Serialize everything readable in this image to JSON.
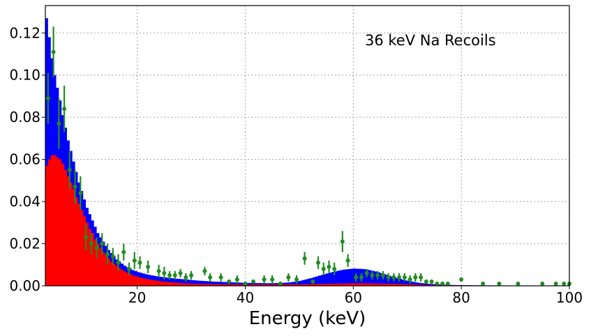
{
  "chart_data": {
    "type": "bar",
    "title": "",
    "xlabel": "Energy (keV)",
    "ylabel": "",
    "annotation": "36 keV Na Recoils",
    "xlim": [
      3,
      100
    ],
    "ylim": [
      0,
      0.133
    ],
    "grid": true,
    "x_ticks": [
      20,
      40,
      60,
      80,
      100
    ],
    "x_tick_labels": [
      "20",
      "40",
      "60",
      "80",
      "100"
    ],
    "y_ticks": [
      0,
      0.02,
      0.04,
      0.06,
      0.08,
      0.1,
      0.12
    ],
    "y_tick_labels": [
      "0.00",
      "0.02",
      "0.04",
      "0.06",
      "0.08",
      "0.10",
      "0.12"
    ],
    "bin_width": 0.5,
    "colors": {
      "total": "#0000ff",
      "recoil": "#ff0000",
      "data": "#228b22"
    },
    "series": [
      {
        "kind": "histogram",
        "color": "#0000ff",
        "x": [
          3,
          3.5,
          4,
          4.5,
          5,
          5.5,
          6,
          6.5,
          7,
          7.5,
          8,
          8.5,
          9,
          9.5,
          10,
          10.5,
          11,
          11.5,
          12,
          12.5,
          13,
          13.5,
          14,
          14.5,
          15,
          15.5,
          16,
          16.5,
          17,
          17.5,
          18,
          19,
          20,
          21,
          22,
          23,
          24,
          25,
          26,
          27,
          28,
          29,
          30,
          32,
          34,
          36,
          38,
          40,
          42,
          44,
          46,
          48,
          50,
          52,
          54,
          56,
          58,
          60,
          62,
          64,
          66,
          68,
          70,
          72,
          74,
          76,
          78,
          80,
          85,
          90,
          95,
          100
        ],
        "values": [
          0.127,
          0.118,
          0.108,
          0.1,
          0.094,
          0.088,
          0.081,
          0.075,
          0.069,
          0.064,
          0.059,
          0.054,
          0.049,
          0.045,
          0.041,
          0.037,
          0.034,
          0.031,
          0.028,
          0.025,
          0.023,
          0.021,
          0.019,
          0.017,
          0.0155,
          0.014,
          0.0125,
          0.0115,
          0.0105,
          0.0095,
          0.0088,
          0.0075,
          0.0065,
          0.0058,
          0.0052,
          0.0047,
          0.0043,
          0.004,
          0.0037,
          0.0034,
          0.0032,
          0.003,
          0.0027,
          0.0023,
          0.002,
          0.0018,
          0.0016,
          0.0014,
          0.0013,
          0.0012,
          0.0013,
          0.0016,
          0.0024,
          0.0037,
          0.0052,
          0.0066,
          0.0077,
          0.0082,
          0.0079,
          0.0068,
          0.0052,
          0.0036,
          0.0023,
          0.0014,
          0.0009,
          0.0006,
          0.0004,
          0.0003,
          0.0002,
          0.0001,
          0.0001,
          0.0001
        ]
      },
      {
        "kind": "histogram",
        "color": "#ff0000",
        "x": [
          3,
          3.5,
          4,
          4.5,
          5,
          5.5,
          6,
          6.5,
          7,
          7.5,
          8,
          8.5,
          9,
          9.5,
          10,
          10.5,
          11,
          11.5,
          12,
          12.5,
          13,
          13.5,
          14,
          14.5,
          15,
          15.5,
          16,
          16.5,
          17,
          17.5,
          18,
          19,
          20,
          21,
          22,
          23,
          24,
          25,
          26,
          27,
          28,
          29,
          30,
          32,
          34,
          36,
          38,
          40,
          42,
          44,
          46,
          48,
          50,
          52,
          54,
          56,
          58,
          60,
          62,
          64,
          66,
          68,
          70,
          72,
          74,
          76,
          78,
          80,
          85,
          90,
          95,
          100
        ],
        "values": [
          0.057,
          0.06,
          0.062,
          0.062,
          0.061,
          0.06,
          0.058,
          0.055,
          0.052,
          0.049,
          0.046,
          0.042,
          0.039,
          0.036,
          0.033,
          0.03,
          0.027,
          0.025,
          0.022,
          0.02,
          0.018,
          0.016,
          0.0145,
          0.013,
          0.0115,
          0.0105,
          0.0095,
          0.0085,
          0.0076,
          0.0068,
          0.0062,
          0.005,
          0.0042,
          0.0035,
          0.003,
          0.0026,
          0.0022,
          0.0019,
          0.0017,
          0.0015,
          0.0013,
          0.0012,
          0.001,
          0.0009,
          0.0008,
          0.0007,
          0.0007,
          0.0006,
          0.0006,
          0.0006,
          0.0006,
          0.0007,
          0.0007,
          0.0008,
          0.0009,
          0.001,
          0.0011,
          0.0012,
          0.0012,
          0.0011,
          0.001,
          0.0009,
          0.0007,
          0.0005,
          0.0004,
          0.0003,
          0.0002,
          0.0002,
          0.0001,
          0.0001,
          0.0001,
          0.0001
        ]
      },
      {
        "kind": "errorbar",
        "color": "#228b22",
        "x": [
          3.5,
          4.5,
          5.5,
          6.5,
          7.5,
          8.5,
          9.5,
          10.5,
          11.5,
          12.5,
          13.5,
          14.5,
          15.5,
          16.5,
          17.5,
          18.5,
          19.5,
          20.5,
          22,
          24,
          25,
          26,
          27,
          28,
          29,
          30,
          32.5,
          33.5,
          35.5,
          37,
          38.5,
          40,
          41.5,
          43.5,
          45,
          46.5,
          48,
          49.5,
          51,
          52.5,
          53.5,
          54.5,
          55.5,
          56.5,
          58,
          59,
          60.5,
          61.5,
          62.5,
          63.5,
          64.5,
          65.5,
          66.5,
          67.5,
          68.5,
          69.5,
          70.5,
          71.5,
          72.5,
          73.5,
          74.5,
          75.5,
          76.5,
          77.5,
          80,
          84,
          87,
          90.5,
          95,
          97.5,
          99,
          100
        ],
        "y": [
          0.089,
          0.111,
          0.077,
          0.084,
          0.055,
          0.047,
          0.044,
          0.023,
          0.02,
          0.018,
          0.02,
          0.015,
          0.014,
          0.011,
          0.016,
          0.008,
          0.012,
          0.011,
          0.009,
          0.007,
          0.006,
          0.005,
          0.005,
          0.006,
          0.004,
          0.005,
          0.007,
          0.004,
          0.004,
          0.002,
          0.003,
          0.001,
          0.002,
          0.003,
          0.003,
          0.001,
          0.004,
          0.003,
          0.013,
          0.002,
          0.011,
          0.008,
          0.009,
          0.008,
          0.021,
          0.012,
          0.004,
          0.004,
          0.006,
          0.005,
          0.005,
          0.005,
          0.004,
          0.004,
          0.004,
          0.004,
          0.003,
          0.004,
          0.004,
          0.002,
          0.002,
          0.001,
          0.001,
          0.001,
          0.003,
          0.001,
          0.001,
          0.001,
          0.001,
          0.001,
          0.001,
          0.001
        ],
        "error": [
          0.012,
          0.012,
          0.012,
          0.011,
          0.009,
          0.008,
          0.008,
          0.006,
          0.005,
          0.005,
          0.005,
          0.005,
          0.004,
          0.004,
          0.004,
          0.003,
          0.004,
          0.003,
          0.003,
          0.003,
          0.003,
          0.002,
          0.002,
          0.002,
          0.002,
          0.002,
          0.002,
          0.002,
          0.002,
          0.001,
          0.002,
          0.001,
          0.001,
          0.002,
          0.002,
          0.001,
          0.002,
          0.002,
          0.003,
          0.001,
          0.003,
          0.003,
          0.003,
          0.003,
          0.005,
          0.003,
          0.002,
          0.002,
          0.002,
          0.002,
          0.002,
          0.002,
          0.002,
          0.002,
          0.002,
          0.002,
          0.002,
          0.002,
          0.002,
          0.001,
          0.001,
          0.001,
          0.001,
          0.001,
          0.001,
          0.001,
          0.001,
          0.001,
          0.001,
          0.001,
          0.001,
          0.001
        ]
      }
    ]
  }
}
